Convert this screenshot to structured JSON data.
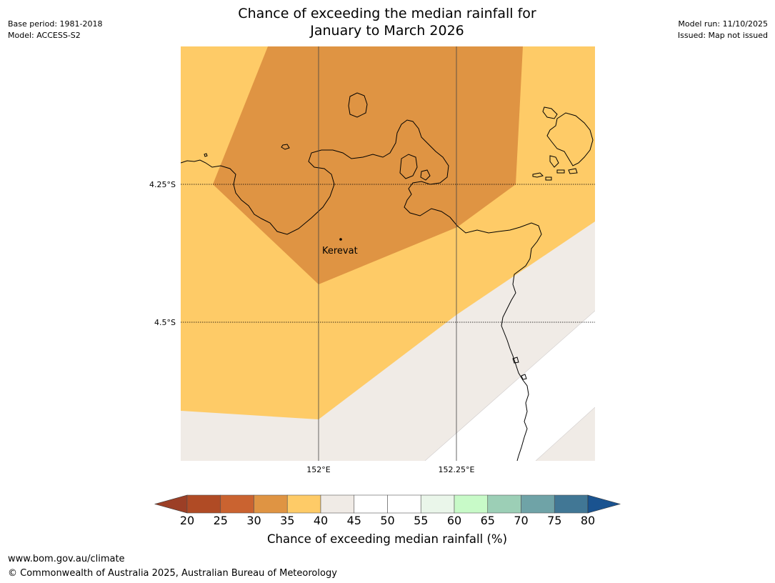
{
  "title": {
    "line1": "Chance of exceeding the median rainfall for",
    "line2": "January to March 2026"
  },
  "meta_left": {
    "base_period": "Base period: 1981-2018",
    "model": "Model: ACCESS-S2"
  },
  "meta_right": {
    "model_run": "Model run: 11/10/2025",
    "issued": "Issued: Map not issued"
  },
  "map": {
    "lat_labels": [
      "4.25°S",
      "4.5°S"
    ],
    "lon_labels": [
      "152°E",
      "152.25°E"
    ],
    "place": {
      "name": "Kerevat"
    },
    "region_colors": {
      "band_30_35": "#df9443",
      "band_35_40": "#fecb67",
      "band_40_45": "#f0ebe6",
      "ocean_outside": "#ffffff"
    }
  },
  "colorbar": {
    "ticks": [
      "20",
      "25",
      "30",
      "35",
      "40",
      "45",
      "50",
      "55",
      "60",
      "65",
      "70",
      "75",
      "80"
    ],
    "colors": [
      "#b04b25",
      "#ca6330",
      "#df9443",
      "#fecb67",
      "#f0ebe6",
      "#ffffff",
      "#ffffff",
      "#eaf6ea",
      "#c8fac8",
      "#9ccfb6",
      "#6fa3a7",
      "#417795"
    ],
    "under_color": "#9c3f26",
    "over_color": "#1a5390",
    "label": "Chance of exceeding median rainfall (%)"
  },
  "footer": {
    "url": "www.bom.gov.au/climate",
    "copyright": "© Commonwealth of Australia 2025, Australian Bureau of Meteorology"
  }
}
